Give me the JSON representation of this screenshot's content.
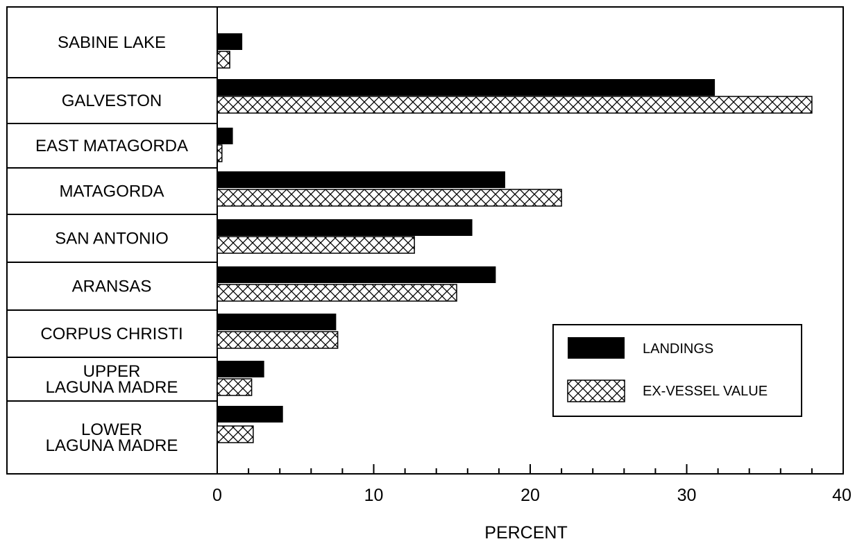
{
  "chart_data": {
    "type": "bar",
    "orientation": "horizontal",
    "categories": [
      "SABINE LAKE",
      "GALVESTON",
      "EAST MATAGORDA",
      "MATAGORDA",
      "SAN ANTONIO",
      "ARANSAS",
      "CORPUS CHRISTI",
      "UPPER LAGUNA MADRE",
      "LOWER LAGUNA MADRE"
    ],
    "category_lines": [
      [
        "SABINE LAKE"
      ],
      [
        "GALVESTON"
      ],
      [
        "EAST MATAGORDA"
      ],
      [
        "MATAGORDA"
      ],
      [
        "SAN ANTONIO"
      ],
      [
        "ARANSAS"
      ],
      [
        "CORPUS CHRISTI"
      ],
      [
        "UPPER",
        "LAGUNA MADRE"
      ],
      [
        "LOWER",
        "LAGUNA MADRE"
      ]
    ],
    "series": [
      {
        "name": "LANDINGS",
        "fill": "solid",
        "color": "#000000",
        "values": [
          1.6,
          31.8,
          1.0,
          18.4,
          16.3,
          17.8,
          7.6,
          3.0,
          4.2
        ]
      },
      {
        "name": "EX-VESSEL VALUE",
        "fill": "crosshatch",
        "color": "#000000",
        "values": [
          0.8,
          38.0,
          0.3,
          22.0,
          12.6,
          15.3,
          7.7,
          2.2,
          2.3
        ]
      }
    ],
    "xlim": [
      0,
      40
    ],
    "xticks": [
      "0",
      "10",
      "20",
      "30",
      "40"
    ],
    "xlabel": "PERCENT",
    "ylabel": "",
    "title": "",
    "grid": false,
    "legend_position": "lower-right"
  }
}
